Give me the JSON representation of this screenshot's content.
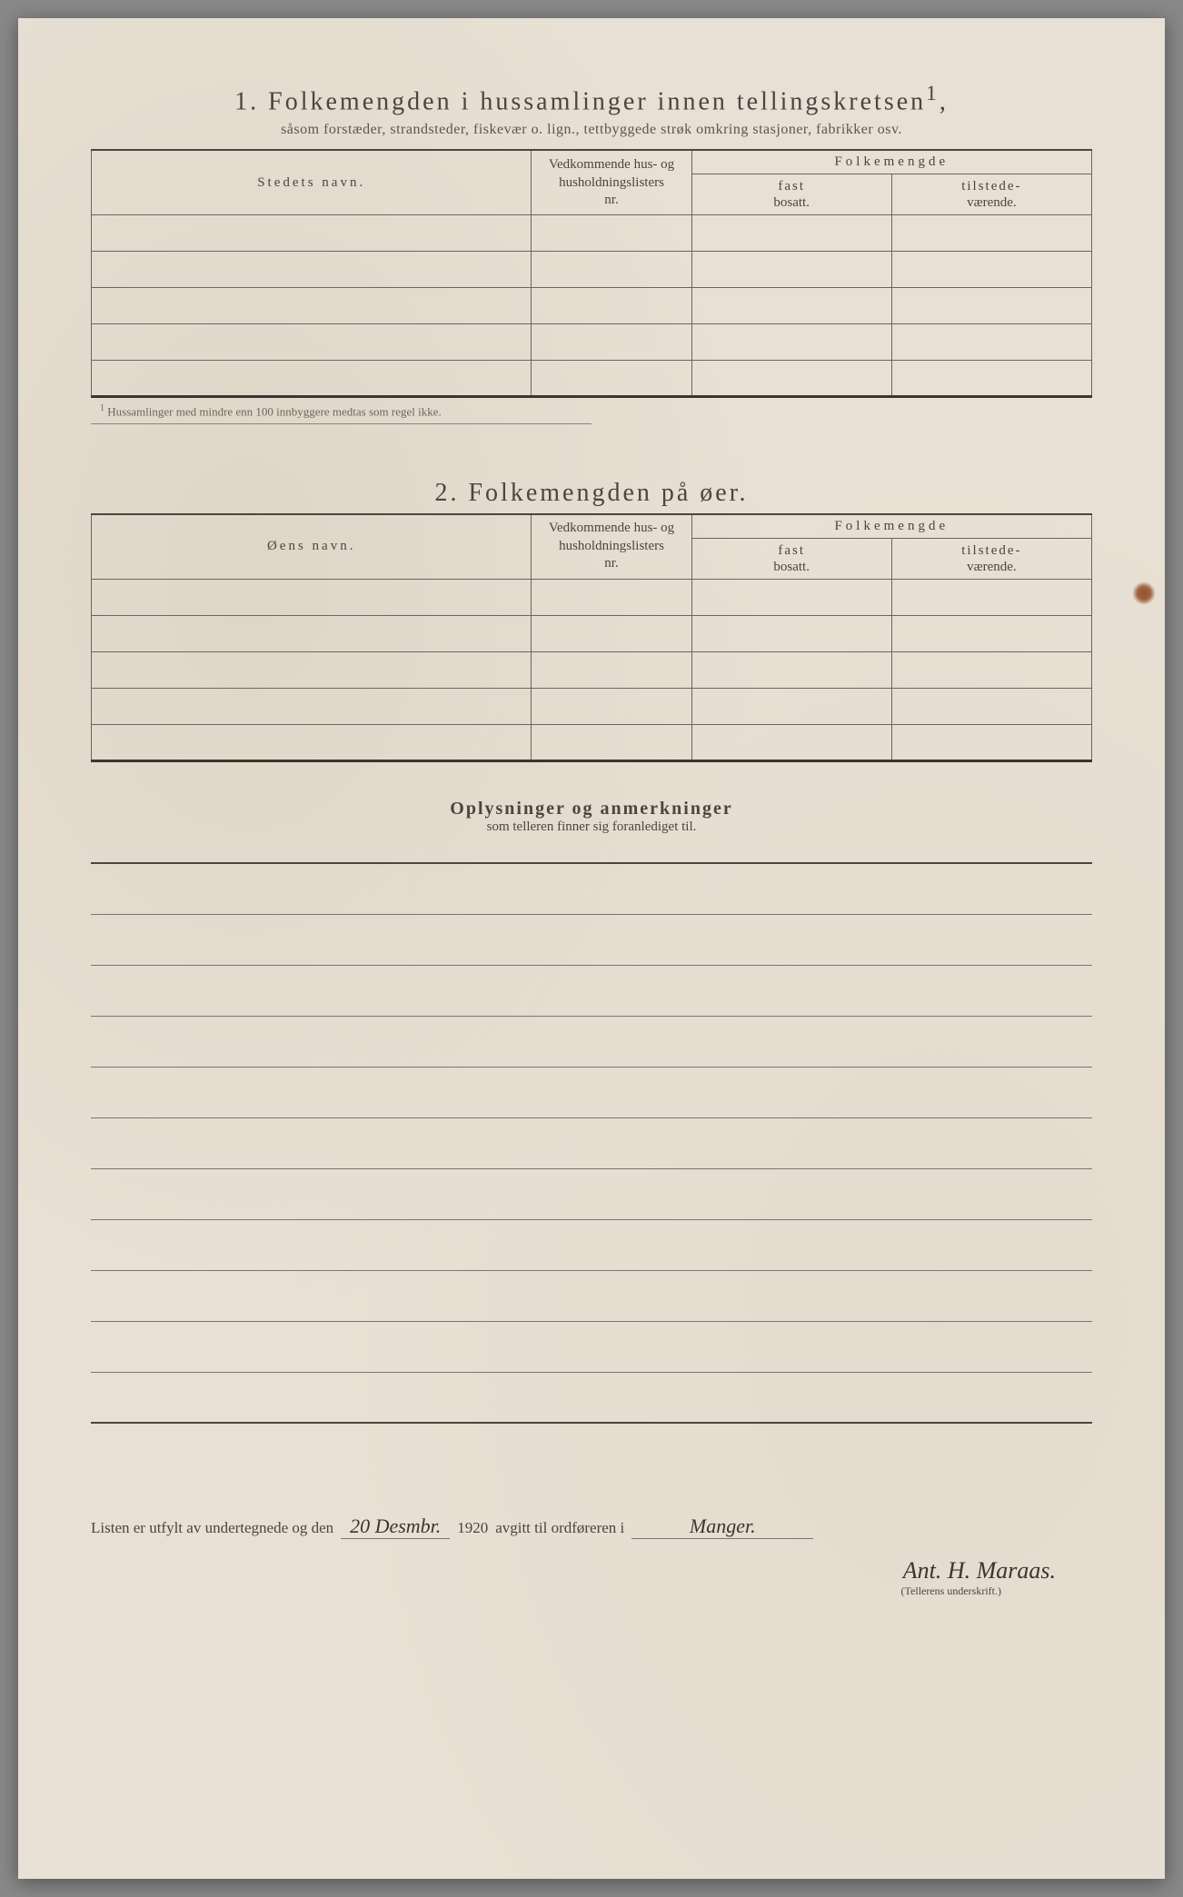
{
  "section1": {
    "number": "1.",
    "title": "Folkemengden i hussamlinger innen tellingskretsen",
    "title_sup": "1",
    "subtitle": "såsom forstæder, strandsteder, fiskevær o. lign., tettbyggede strøk omkring stasjoner, fabrikker osv.",
    "col_name": "Stedets navn.",
    "col_nr_line1": "Vedkommende hus- og",
    "col_nr_line2": "husholdningslisters",
    "col_nr_line3": "nr.",
    "col_folk": "Folkemengde",
    "col_fast_line1": "fast",
    "col_fast_line2": "bosatt.",
    "col_til_line1": "tilstede-",
    "col_til_line2": "værende.",
    "footnote": "Hussamlinger med mindre enn 100 innbyggere medtas som regel ikke."
  },
  "section2": {
    "number": "2.",
    "title": "Folkemengden på øer.",
    "col_name": "Øens navn.",
    "col_nr_line1": "Vedkommende hus- og",
    "col_nr_line2": "husholdningslisters",
    "col_nr_line3": "nr.",
    "col_folk": "Folkemengde",
    "col_fast_line1": "fast",
    "col_fast_line2": "bosatt.",
    "col_til_line1": "tilstede-",
    "col_til_line2": "værende."
  },
  "remarks": {
    "title": "Oplysninger og anmerkninger",
    "subtitle": "som telleren finner sig foranlediget til."
  },
  "signature": {
    "prefix": "Listen er utfylt av undertegnede og den",
    "date_written": "20 Desmbr.",
    "year": "1920",
    "middle": "avgitt til ordføreren i",
    "place_written": "Manger.",
    "name_written": "Ant. H. Maraas.",
    "caption": "(Tellerens underskrift.)"
  },
  "layout": {
    "data_rows_section1": 5,
    "data_rows_section2": 5,
    "ruled_lines": 11
  },
  "colors": {
    "paper": "#e8e0d4",
    "ink": "#4a4540",
    "rule": "#6a6560"
  }
}
